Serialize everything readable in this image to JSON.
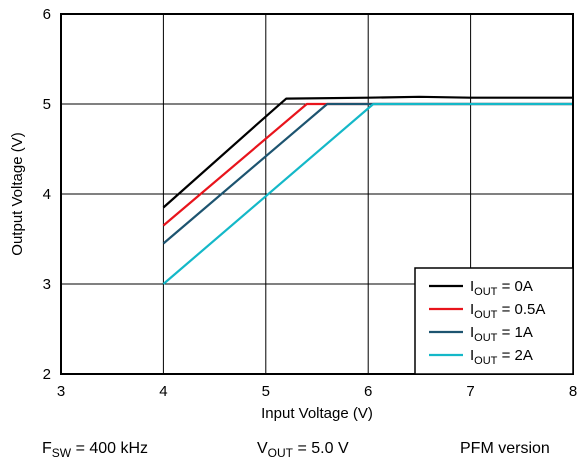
{
  "chart_data": {
    "type": "line",
    "xlabel": "Input Voltage (V)",
    "ylabel": "Output Voltage (V)",
    "xlim": [
      3,
      8
    ],
    "ylim": [
      2,
      6
    ],
    "xticks": [
      "3",
      "4",
      "5",
      "6",
      "7",
      "8"
    ],
    "yticks": [
      "2",
      "3",
      "4",
      "5",
      "6"
    ],
    "grid": true,
    "legend_position": "bottom-right",
    "series": [
      {
        "name": "0A",
        "color": "#000000",
        "x": [
          4.0,
          4.9,
          5.0,
          5.1,
          5.2,
          6.0,
          6.5,
          7.0,
          8.0
        ],
        "y": [
          3.85,
          4.76,
          4.86,
          4.96,
          5.06,
          5.07,
          5.08,
          5.07,
          5.07
        ]
      },
      {
        "name": "0.5A",
        "color": "#e8141c",
        "x": [
          4.0,
          5.4,
          5.6,
          8.0
        ],
        "y": [
          3.65,
          5.0,
          5.0,
          5.0
        ]
      },
      {
        "name": "1A",
        "color": "#1d5470",
        "x": [
          4.0,
          5.6,
          8.0
        ],
        "y": [
          3.45,
          5.0,
          5.0
        ]
      },
      {
        "name": "2A",
        "color": "#14b8c8",
        "x": [
          4.0,
          6.05,
          8.0
        ],
        "y": [
          3.0,
          5.0,
          5.0
        ]
      }
    ]
  },
  "footer": {
    "fsw_label": "F",
    "fsw_sub": "SW",
    "fsw_value": " = 400 kHz",
    "vout_label": "V",
    "vout_sub": "OUT",
    "vout_value": " = 5.0 V",
    "version": "PFM version"
  },
  "legend_prefix": "I",
  "legend_sub": "OUT",
  "legend_eq": " = "
}
